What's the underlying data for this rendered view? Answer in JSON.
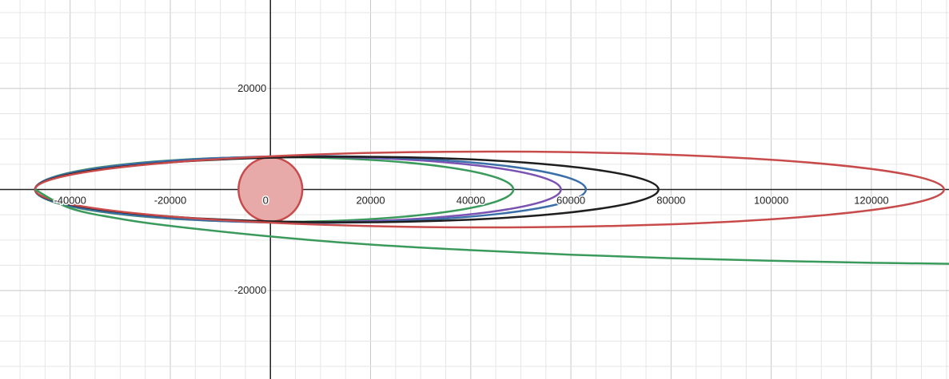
{
  "chart_data": {
    "type": "line",
    "xlim": [
      -54000,
      135500
    ],
    "ylim": [
      -37500,
      37500
    ],
    "grid": "on",
    "x_ticks": [
      -40000,
      -20000,
      0,
      20000,
      40000,
      60000,
      80000,
      100000,
      120000
    ],
    "x_tick_labels": [
      "-40000",
      "-20000",
      "0",
      "20000",
      "40000",
      "60000",
      "80000",
      "100000",
      "120000"
    ],
    "y_ticks": [
      20000,
      -20000
    ],
    "y_tick_labels": [
      "20000",
      "-20000"
    ],
    "colors": {
      "green": "#3a9a5b",
      "purple": "#7a52b2",
      "black": "#1e1e1e",
      "red": "#c84b4b",
      "blue": "#3a6ea8",
      "circle_fill": "#e8a9a9"
    },
    "circle": {
      "center": [
        0,
        0
      ],
      "radius": 6371,
      "color": "circle_fill",
      "stroke": "red"
    },
    "ellipses": [
      {
        "id": "green-ellipse",
        "x_min": -47000,
        "x_max": 48500,
        "semi_minor": 6400,
        "color": "green"
      },
      {
        "id": "purple-ellipse",
        "x_min": -47000,
        "x_max": 58000,
        "semi_minor": 6500,
        "color": "purple"
      },
      {
        "id": "blue-ellipse",
        "x_min": -47000,
        "x_max": 63000,
        "semi_minor": 6600,
        "color": "blue"
      },
      {
        "id": "black-ellipse",
        "x_min": -47000,
        "x_max": 77500,
        "semi_minor": 6500,
        "color": "black"
      },
      {
        "id": "red-ellipse",
        "x_min": -47000,
        "x_max": 134500,
        "semi_minor": 7500,
        "color": "red"
      }
    ],
    "trajectory": {
      "id": "green-escape-trajectory",
      "color": "green",
      "points": [
        [
          -47000,
          0
        ],
        [
          -40000,
          -3700
        ],
        [
          -30000,
          -5800
        ],
        [
          -20000,
          -7200
        ],
        [
          0,
          -9300
        ],
        [
          20000,
          -10900
        ],
        [
          40000,
          -12000
        ],
        [
          60000,
          -12900
        ],
        [
          80000,
          -13600
        ],
        [
          100000,
          -14100
        ],
        [
          120000,
          -14500
        ],
        [
          135500,
          -14700
        ]
      ]
    }
  }
}
